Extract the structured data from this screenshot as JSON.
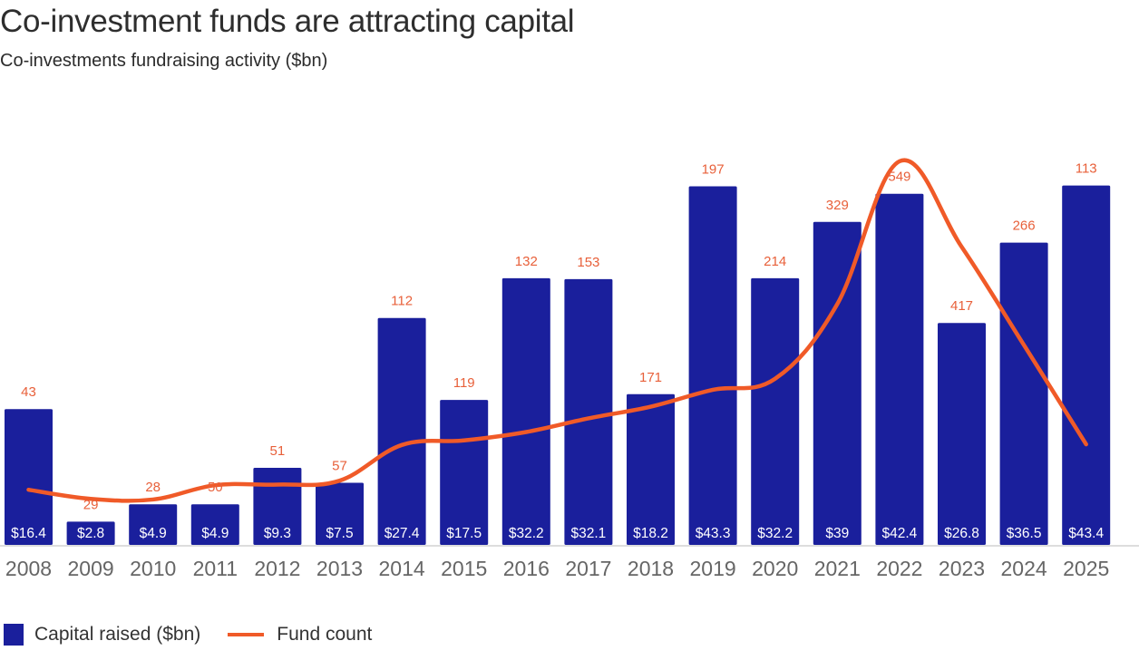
{
  "title": "Co-investment funds are attracting capital",
  "subtitle": "Co-investments fundraising activity ($bn)",
  "colors": {
    "bar": "#1a1f9c",
    "line": "#f05a28",
    "count_label": "#e8603a",
    "axis_text": "#666666",
    "baseline": "#dddddd"
  },
  "legend": {
    "bar_label": "Capital raised ($bn)",
    "line_label": "Fund count"
  },
  "chart_data": {
    "type": "bar",
    "title": "Co-investment funds are attracting capital",
    "subtitle": "Co-investments fundraising activity ($bn)",
    "xlabel": "",
    "ylabel": "",
    "categories": [
      "2008",
      "2009",
      "2010",
      "2011",
      "2012",
      "2013",
      "2014",
      "2015",
      "2016",
      "2017",
      "2018",
      "2019",
      "2020",
      "2021",
      "2022",
      "2023",
      "2024",
      "2025"
    ],
    "series": [
      {
        "name": "Capital raised ($bn)",
        "type": "bar",
        "values": [
          16.4,
          2.8,
          4.9,
          4.9,
          9.3,
          7.5,
          27.4,
          17.5,
          32.2,
          32.1,
          18.2,
          43.3,
          32.2,
          39,
          42.4,
          26.8,
          36.5,
          43.4
        ],
        "labels": [
          "$16.4",
          "$2.8",
          "$4.9",
          "$4.9",
          "$9.3",
          "$7.5",
          "$27.4",
          "$17.5",
          "$32.2",
          "$32.1",
          "$18.2",
          "$43.3",
          "$32.2",
          "$39",
          "$42.4",
          "$26.8",
          "$36.5",
          "$43.4"
        ]
      },
      {
        "name": "Fund count",
        "type": "line",
        "values": [
          43,
          29,
          28,
          50,
          51,
          57,
          112,
          119,
          132,
          153,
          171,
          197,
          214,
          329,
          549,
          417,
          266,
          113
        ],
        "labels": [
          "43",
          "29",
          "28",
          "50",
          "51",
          "57",
          "112",
          "119",
          "132",
          "153",
          "171",
          "197",
          "214",
          "329",
          "549",
          "417",
          "266",
          "113"
        ]
      }
    ],
    "bar_ylim": [
      0,
      45
    ],
    "line_ylim": [
      0,
      560
    ],
    "grid": false,
    "legend_position": "bottom-left"
  }
}
